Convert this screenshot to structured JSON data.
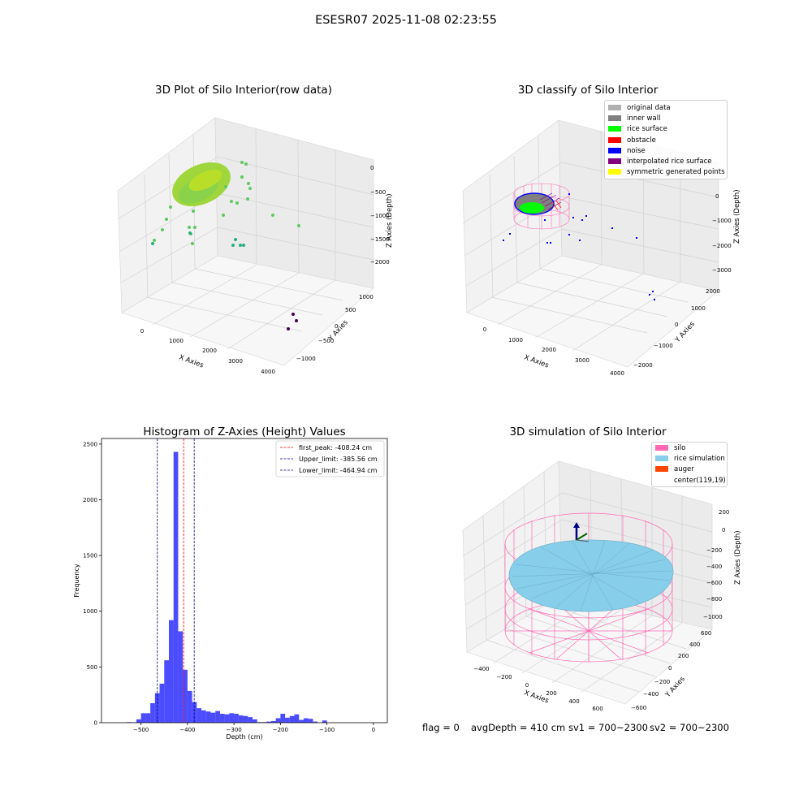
{
  "suptitle": "ESESR07 2025-11-08 02:23:55",
  "status_bar": {
    "flag": "flag = 0",
    "avg_depth": "avgDepth = 410 cm",
    "sv1": "sv1 = 700~2300",
    "sv2": "sv2 = 700~2300"
  },
  "chart_data": [
    {
      "type": "scatter",
      "projection": "3d",
      "title": "3D Plot of Silo Interior(row data)",
      "xlabel": "X Axies",
      "ylabel": "Y Axies",
      "zlabel": "Z Axies (Depth)",
      "x_ticks": [
        "0",
        "1000",
        "2000",
        "3000",
        "4000"
      ],
      "y_ticks": [
        "−1000",
        "−500",
        "0",
        "500",
        "1000"
      ],
      "z_ticks": [
        "−2000",
        "−1500",
        "−1000",
        "−500",
        "0"
      ],
      "colormap": [
        "#440154",
        "#21918c",
        "#5ec962",
        "#b5de2b"
      ],
      "grid": true
    },
    {
      "type": "scatter",
      "projection": "3d",
      "title": "3D classify of Silo Interior",
      "xlabel": "X Axies",
      "ylabel": "Y Axies",
      "zlabel": "Z Axies (Depth)",
      "x_ticks": [
        "0",
        "1000",
        "2000",
        "3000",
        "4000"
      ],
      "y_ticks": [
        "−2000",
        "−1000",
        "0",
        "1000",
        "2000"
      ],
      "z_ticks": [
        "−3000",
        "−2000",
        "−1000",
        "0"
      ],
      "legend_position": "top-right",
      "legend": [
        {
          "label": "original data",
          "color": "#b0b0b0"
        },
        {
          "label": "inner wall",
          "color": "#808080"
        },
        {
          "label": "rice surface",
          "color": "#00ff00"
        },
        {
          "label": "obstacle",
          "color": "#ff0000"
        },
        {
          "label": "noise",
          "color": "#0000ff"
        },
        {
          "label": "interpolated rice surface",
          "color": "#800080"
        },
        {
          "label": "symmetric generated points",
          "color": "#ffff00"
        }
      ],
      "grid": true
    },
    {
      "type": "bar",
      "title": "Histogram of Z-Axies (Height) Values",
      "xlabel": "Depth (cm)",
      "ylabel": "Frequency",
      "xlim": [
        -585,
        30
      ],
      "ylim": [
        0,
        2550
      ],
      "x_ticks": [
        -500,
        -400,
        -300,
        -200,
        -100,
        0
      ],
      "y_ticks": [
        0,
        500,
        1000,
        1500,
        2000,
        2500
      ],
      "bar_color": "#0000ff",
      "bin_width": 10,
      "bins": [
        {
          "x": -525,
          "v": 5
        },
        {
          "x": -515,
          "v": 3
        },
        {
          "x": -505,
          "v": 30
        },
        {
          "x": -495,
          "v": 85
        },
        {
          "x": -485,
          "v": 85
        },
        {
          "x": -475,
          "v": 175
        },
        {
          "x": -465,
          "v": 265
        },
        {
          "x": -455,
          "v": 350
        },
        {
          "x": -445,
          "v": 560
        },
        {
          "x": -435,
          "v": 920
        },
        {
          "x": -425,
          "v": 2430
        },
        {
          "x": -415,
          "v": 820
        },
        {
          "x": -405,
          "v": 475
        },
        {
          "x": -395,
          "v": 285
        },
        {
          "x": -385,
          "v": 185
        },
        {
          "x": -375,
          "v": 130
        },
        {
          "x": -365,
          "v": 110
        },
        {
          "x": -355,
          "v": 100
        },
        {
          "x": -345,
          "v": 90
        },
        {
          "x": -335,
          "v": 105
        },
        {
          "x": -325,
          "v": 80
        },
        {
          "x": -315,
          "v": 75
        },
        {
          "x": -305,
          "v": 85
        },
        {
          "x": -295,
          "v": 80
        },
        {
          "x": -285,
          "v": 65
        },
        {
          "x": -275,
          "v": 60
        },
        {
          "x": -265,
          "v": 50
        },
        {
          "x": -255,
          "v": 30
        },
        {
          "x": -245,
          "v": 5
        },
        {
          "x": -235,
          "v": 5
        },
        {
          "x": -225,
          "v": 10
        },
        {
          "x": -215,
          "v": 15
        },
        {
          "x": -205,
          "v": 40
        },
        {
          "x": -195,
          "v": 80
        },
        {
          "x": -185,
          "v": 45
        },
        {
          "x": -175,
          "v": 60
        },
        {
          "x": -165,
          "v": 75
        },
        {
          "x": -155,
          "v": 25
        },
        {
          "x": -145,
          "v": 40
        },
        {
          "x": -135,
          "v": 35
        },
        {
          "x": -125,
          "v": 10
        },
        {
          "x": -105,
          "v": 20
        }
      ],
      "vlines": [
        {
          "label": "first_peak: -408.24 cm",
          "x": -408.24,
          "color": "#ff0000"
        },
        {
          "label": "Upper_limit: -385.56 cm",
          "x": -385.56,
          "color": "#00008b"
        },
        {
          "label": "Lower_limit: -464.94 cm",
          "x": -464.94,
          "color": "#00008b"
        }
      ],
      "legend_position": "top-right",
      "grid": false
    },
    {
      "type": "scatter",
      "projection": "3d",
      "title": "3D simulation of Silo Interior",
      "xlabel": "X Axies",
      "ylabel": "Y Axies",
      "zlabel": "Z Axies (Depth)",
      "x_ticks": [
        "−400",
        "−200",
        "0",
        "200",
        "400",
        "600"
      ],
      "y_ticks": [
        "−600",
        "−400",
        "−200",
        "0",
        "200",
        "400",
        "600"
      ],
      "z_ticks": [
        "−1000",
        "−800",
        "−600",
        "−400",
        "−200",
        "0",
        "200"
      ],
      "legend_position": "top-right",
      "legend": [
        {
          "label": "silo",
          "color": "#ff69b4"
        },
        {
          "label": "rice simulation",
          "color": "#87ceeb"
        },
        {
          "label": "auger",
          "color": "#ff4500"
        },
        {
          "label": "center(119,19)",
          "color": ""
        }
      ],
      "grid": true
    }
  ]
}
